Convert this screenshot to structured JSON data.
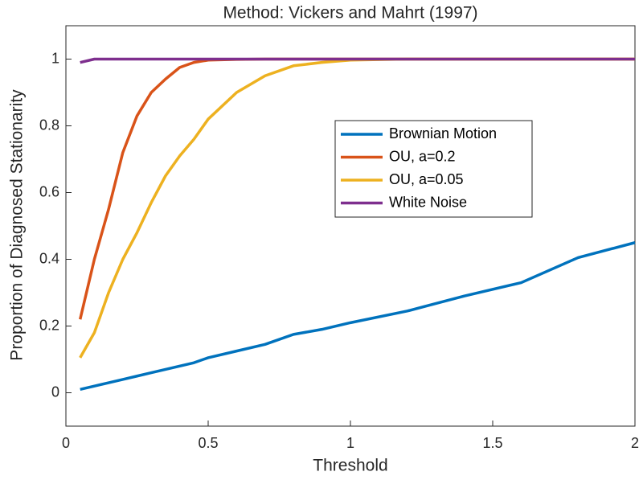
{
  "chart_data": {
    "type": "line",
    "title": "Method: Vickers and Mahrt (1997)",
    "x_label": "Threshold",
    "y_label": "Proportion of Diagnosed Stationarity",
    "x": [
      0.05,
      0.1,
      0.15,
      0.2,
      0.25,
      0.3,
      0.35,
      0.4,
      0.45,
      0.5,
      0.6,
      0.7,
      0.8,
      0.9,
      1.0,
      1.2,
      1.4,
      1.6,
      1.8,
      2.0
    ],
    "series": [
      {
        "name": "Brownian Motion",
        "color": "#0072BD",
        "values": [
          0.01,
          0.02,
          0.03,
          0.04,
          0.05,
          0.06,
          0.07,
          0.08,
          0.09,
          0.105,
          0.125,
          0.145,
          0.175,
          0.19,
          0.21,
          0.245,
          0.29,
          0.33,
          0.405,
          0.45
        ]
      },
      {
        "name": "OU, a=0.2",
        "color": "#D95319",
        "values": [
          0.22,
          0.4,
          0.55,
          0.72,
          0.83,
          0.9,
          0.94,
          0.975,
          0.99,
          0.997,
          0.999,
          1,
          1,
          1,
          1,
          1,
          1,
          1,
          1,
          1
        ]
      },
      {
        "name": "OU, a=0.05",
        "color": "#EDB120",
        "values": [
          0.105,
          0.18,
          0.3,
          0.4,
          0.48,
          0.57,
          0.65,
          0.71,
          0.76,
          0.82,
          0.9,
          0.95,
          0.98,
          0.99,
          0.997,
          1,
          1,
          1,
          1,
          1
        ]
      },
      {
        "name": "White Noise",
        "color": "#7E2F8E",
        "values": [
          0.99,
          1,
          1,
          1,
          1,
          1,
          1,
          1,
          1,
          1,
          1,
          1,
          1,
          1,
          1,
          1,
          1,
          1,
          1,
          1
        ]
      }
    ],
    "xlim": [
      0,
      2
    ],
    "ylim": [
      -0.1,
      1.1
    ],
    "xticks": [
      0,
      0.5,
      1,
      1.5,
      2
    ],
    "yticks": [
      0,
      0.2,
      0.4,
      0.6,
      0.8,
      1
    ],
    "grid": false
  }
}
